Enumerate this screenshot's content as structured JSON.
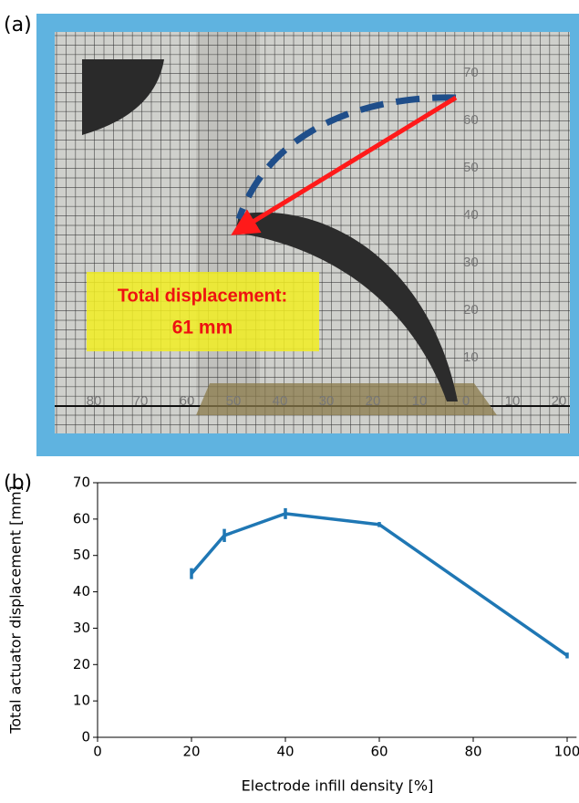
{
  "panel_a": {
    "label": "(a)",
    "annotation_line1": "Total displacement:",
    "annotation_line2": "61 mm",
    "ruler_y": [
      "70",
      "60",
      "50",
      "40",
      "30",
      "20",
      "10"
    ],
    "ruler_x": [
      "80",
      "70",
      "60",
      "50",
      "40",
      "30",
      "20",
      "10",
      "0",
      "10",
      "20"
    ]
  },
  "chart_data": {
    "type": "line",
    "panel_label": "(b)",
    "x_label": "Electrode infill density [%]",
    "y_label": "Total actuator displacement [mm]",
    "x": [
      20,
      27,
      40,
      60,
      100
    ],
    "series": [
      {
        "color": "#1f77b4",
        "values": [
          45,
          55.5,
          61.5,
          58.5,
          22.5
        ],
        "errors": [
          1.5,
          1.8,
          1.5,
          0.7,
          0.8
        ]
      }
    ],
    "xlim": [
      0,
      102
    ],
    "xticks": [
      0,
      20,
      40,
      60,
      80,
      100
    ],
    "ylim": [
      0,
      70
    ],
    "yticks": [
      0,
      10,
      20,
      30,
      40,
      50,
      60,
      70
    ],
    "grid": false
  }
}
